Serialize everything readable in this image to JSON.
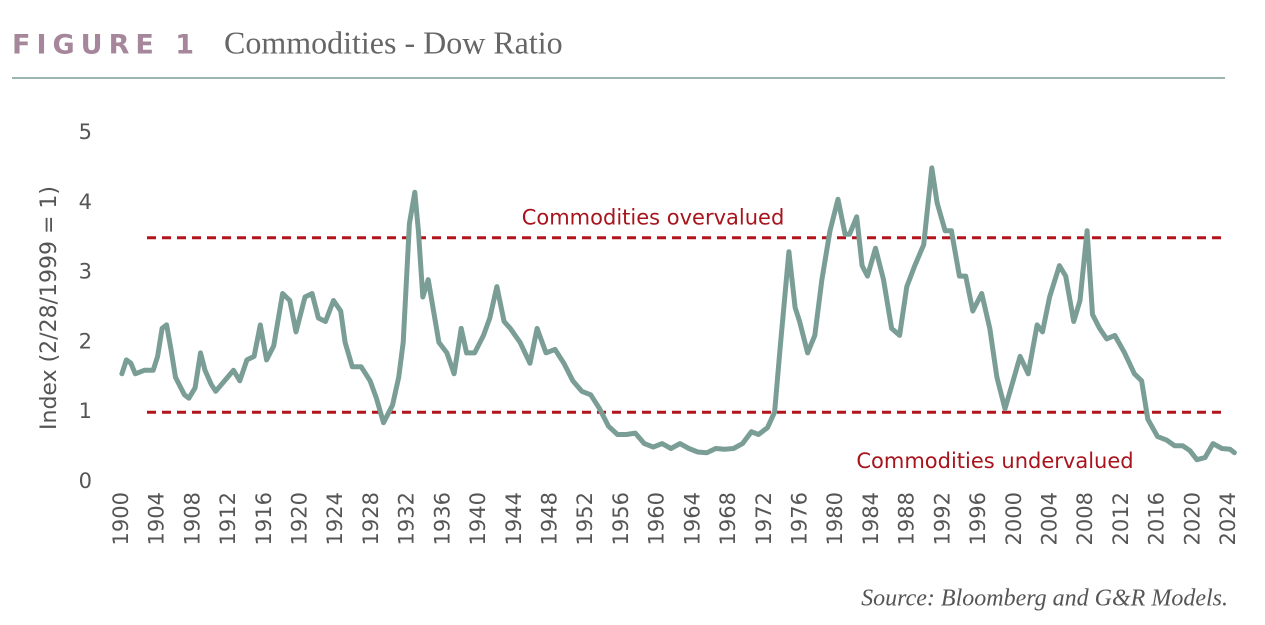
{
  "chart_data": {
    "type": "line",
    "figure_label": "FIGURE 1",
    "title": "Commodities - Dow Ratio",
    "y_label": "Index (2/28/1999 = 1)",
    "source": "Source: Bloomberg and G&R Models.",
    "color": "#7a9e95",
    "ref_color": "#b3141c",
    "xlim": [
      1899,
      2025
    ],
    "ylim": [
      0,
      5
    ],
    "yticks": [
      0,
      1,
      2,
      3,
      4,
      5
    ],
    "xticks": [
      1900,
      1904,
      1908,
      1912,
      1916,
      1920,
      1924,
      1928,
      1932,
      1936,
      1940,
      1944,
      1948,
      1952,
      1956,
      1960,
      1964,
      1968,
      1972,
      1976,
      1980,
      1984,
      1988,
      1992,
      1996,
      2000,
      2004,
      2008,
      2012,
      2016,
      2020,
      2024
    ],
    "reference_lines": [
      {
        "value": 3.5,
        "label": "Commodities overvalued"
      },
      {
        "value": 1,
        "label": "Commodities undervalued"
      }
    ],
    "x": [
      1900,
      1900.5,
      1901,
      1901.5,
      1902.5,
      1903.5,
      1904,
      1904.5,
      1905,
      1905.5,
      1906,
      1907,
      1907.5,
      1908.2,
      1908.8,
      1909.3,
      1910,
      1910.5,
      1911.5,
      1912.5,
      1913.2,
      1914,
      1914.8,
      1915.5,
      1916.2,
      1917,
      1918,
      1918.8,
      1919.5,
      1920.5,
      1921.3,
      1922,
      1922.8,
      1923.7,
      1924.5,
      1925,
      1925.8,
      1926.8,
      1927.8,
      1928.5,
      1929.3,
      1930.3,
      1931,
      1931.5,
      1932.2,
      1932.8,
      1933.2,
      1933.7,
      1934.3,
      1935.5,
      1936.4,
      1937.2,
      1938,
      1938.6,
      1939.5,
      1940.5,
      1941.2,
      1942,
      1942.8,
      1943.5,
      1944.6,
      1945.7,
      1946.5,
      1947.5,
      1948.5,
      1949.5,
      1950.5,
      1951.5,
      1952.5,
      1953.5,
      1954.5,
      1955.5,
      1956.5,
      1957.5,
      1958.5,
      1959.5,
      1960.5,
      1961.5,
      1962.5,
      1963.5,
      1964.5,
      1965.5,
      1966.5,
      1967.5,
      1968.5,
      1969.5,
      1970.5,
      1971.3,
      1972.3,
      1973.1,
      1973.7,
      1974.7,
      1975.4,
      1975.9,
      1976.8,
      1977.6,
      1978.4,
      1979.3,
      1980.2,
      1981,
      1981.5,
      1982.3,
      1982.9,
      1983.5,
      1984.4,
      1985.3,
      1986.2,
      1987.1,
      1987.9,
      1988.8,
      1989.8,
      1990.7,
      1991.3,
      1992.2,
      1992.9,
      1993.8,
      1994.5,
      1995.3,
      1996.3,
      1997.2,
      1998,
      1998.9,
      1999.7,
      2000.6,
      2001.5,
      2002.5,
      2003.1,
      2003.9,
      2005,
      2005.7,
      2006.6,
      2007.3,
      2008.1,
      2008.7,
      2009.5,
      2010.3,
      2011.2,
      2012.3,
      2013.4,
      2014.2,
      2014.9,
      2016,
      2017,
      2017.9,
      2018.8,
      2019.6,
      2020.4,
      2021.3,
      2022.2,
      2023.2,
      2024.1,
      2024.6
    ],
    "values": [
      1.55,
      1.75,
      1.7,
      1.55,
      1.6,
      1.6,
      1.8,
      2.2,
      2.25,
      1.9,
      1.5,
      1.25,
      1.2,
      1.35,
      1.85,
      1.6,
      1.4,
      1.3,
      1.45,
      1.6,
      1.45,
      1.75,
      1.8,
      2.25,
      1.75,
      1.95,
      2.7,
      2.6,
      2.15,
      2.65,
      2.7,
      2.35,
      2.3,
      2.6,
      2.45,
      2.0,
      1.65,
      1.65,
      1.45,
      1.2,
      0.85,
      1.1,
      1.5,
      2.0,
      3.7,
      4.15,
      3.6,
      2.65,
      2.9,
      2.0,
      1.85,
      1.55,
      2.2,
      1.85,
      1.85,
      2.1,
      2.35,
      2.8,
      2.3,
      2.2,
      2.0,
      1.7,
      2.2,
      1.85,
      1.9,
      1.7,
      1.45,
      1.3,
      1.25,
      1.05,
      0.8,
      0.68,
      0.68,
      0.7,
      0.55,
      0.5,
      0.55,
      0.48,
      0.55,
      0.48,
      0.43,
      0.42,
      0.48,
      0.47,
      0.48,
      0.55,
      0.72,
      0.68,
      0.78,
      1.0,
      1.9,
      3.3,
      2.5,
      2.3,
      1.85,
      2.1,
      2.9,
      3.6,
      4.05,
      3.55,
      3.55,
      3.8,
      3.1,
      2.95,
      3.35,
      2.9,
      2.2,
      2.1,
      2.8,
      3.1,
      3.4,
      4.5,
      4.0,
      3.6,
      3.6,
      2.95,
      2.95,
      2.45,
      2.7,
      2.2,
      1.5,
      1.05,
      1.4,
      1.8,
      1.55,
      2.25,
      2.15,
      2.65,
      3.1,
      2.95,
      2.3,
      2.6,
      3.6,
      2.4,
      2.2,
      2.05,
      2.1,
      1.85,
      1.55,
      1.45,
      0.9,
      0.65,
      0.6,
      0.52,
      0.52,
      0.45,
      0.32,
      0.35,
      0.55,
      0.48,
      0.47,
      0.42
    ]
  }
}
